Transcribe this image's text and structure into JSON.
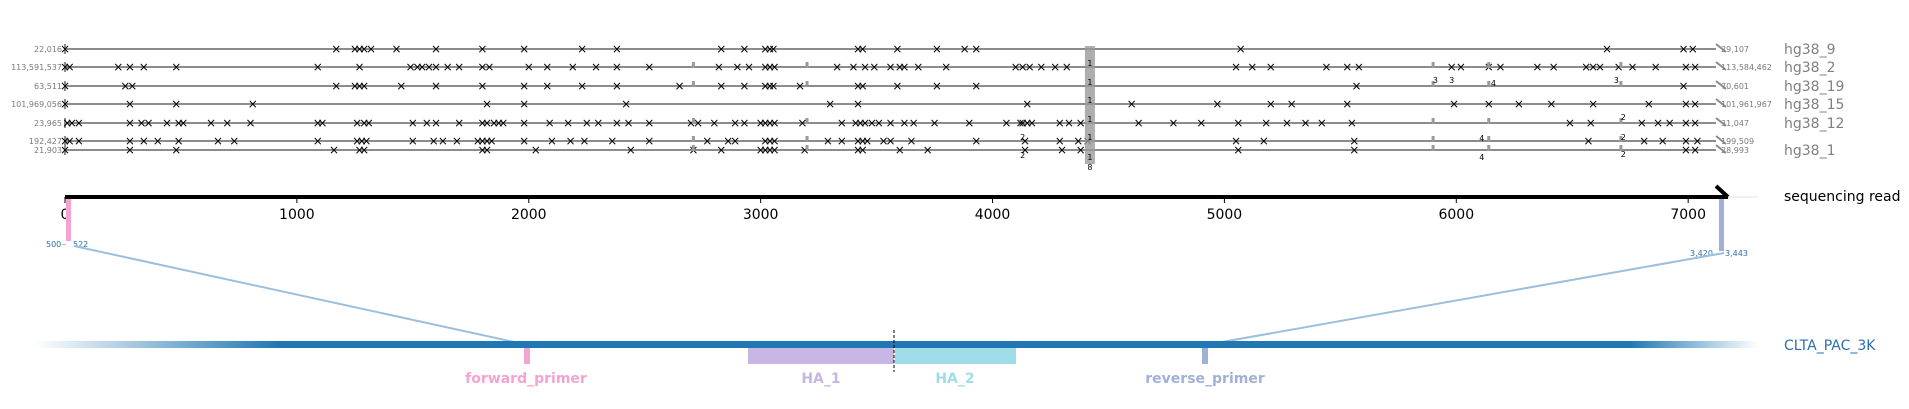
{
  "colors": {
    "alignment_line": "#8c8c8c",
    "read_axis": "#000000",
    "target_bar": "#1f77b4",
    "forward_primer": "#f5a3d0",
    "reverse_primer": "#9fb1d8",
    "ha1": "#c8b6e4",
    "ha2": "#9fdde8",
    "connector": "#9bbfdc",
    "mismatch_grey": "#b5b5b5"
  },
  "read": {
    "label": "sequencing read",
    "length": 7120,
    "ticks": [
      0,
      1000,
      2000,
      3000,
      4000,
      5000,
      6000,
      7000
    ],
    "left_block": {
      "start": 0,
      "end": 22,
      "color": "#f5a3d0"
    },
    "right_block": {
      "start": 7097,
      "end": 7120,
      "color": "#9fb1d8"
    }
  },
  "alignments": [
    {
      "label": "hg38_9",
      "left_coord": "22,016",
      "right_coord": "29,107",
      "show_label": true,
      "marks": [
        0,
        1170,
        1250,
        1270,
        1290,
        1320,
        1430,
        1600,
        1800,
        1980,
        2230,
        2380,
        2830,
        2930,
        3020,
        3040,
        3055,
        3420,
        3440,
        3590,
        3760,
        3880,
        3930,
        5070,
        6650,
        6980,
        7020
      ]
    },
    {
      "label": "hg38_2",
      "left_coord": "113,591,537",
      "right_coord": "113,584,462",
      "show_label": true,
      "marks": [
        0,
        20,
        230,
        280,
        340,
        480,
        1090,
        1270,
        1490,
        1520,
        1540,
        1570,
        1600,
        1650,
        1700,
        1800,
        1830,
        2000,
        2080,
        2190,
        2290,
        2380,
        2520,
        2820,
        2900,
        2950,
        3020,
        3040,
        3060,
        3330,
        3400,
        3450,
        3490,
        3560,
        3600,
        3620,
        3680,
        3800,
        4100,
        4130,
        4160,
        4210,
        4270,
        4320,
        5050,
        5120,
        5200,
        5440,
        5530,
        5580,
        5980,
        6020,
        6140,
        6190,
        6350,
        6420,
        6560,
        6590,
        6620,
        6700,
        6760,
        6860,
        6990,
        7030
      ]
    },
    {
      "label": "hg38_19",
      "left_coord": "63,511",
      "right_coord": "70,601",
      "show_label": true,
      "marks": [
        0,
        260,
        290,
        1170,
        1250,
        1270,
        1290,
        1450,
        1600,
        1800,
        1980,
        2080,
        2230,
        2380,
        2650,
        2830,
        2930,
        3020,
        3040,
        3055,
        3170,
        3420,
        3440,
        3590,
        3760,
        3930,
        5570,
        6980
      ]
    },
    {
      "label": "hg38_15",
      "left_coord": "101,969,056",
      "right_coord": "101,961,967",
      "show_label": true,
      "marks": [
        0,
        280,
        480,
        810,
        1820,
        1980,
        2420,
        3300,
        3420,
        4150,
        4600,
        4970,
        5200,
        5290,
        5530,
        5990,
        6140,
        6270,
        6410,
        6590,
        6830,
        6990,
        7030
      ]
    },
    {
      "label": "hg38_12",
      "left_coord": "23,965",
      "right_coord": "31,047",
      "show_label": true,
      "marks": [
        10,
        30,
        60,
        280,
        330,
        360,
        440,
        490,
        510,
        630,
        700,
        800,
        1090,
        1110,
        1260,
        1290,
        1310,
        1500,
        1560,
        1600,
        1700,
        1800,
        1820,
        1850,
        1870,
        1890,
        1980,
        2090,
        2170,
        2250,
        2300,
        2380,
        2430,
        2520,
        2700,
        2730,
        2800,
        2890,
        2930,
        3000,
        3020,
        3040,
        3060,
        3180,
        3350,
        3410,
        3430,
        3450,
        3480,
        3510,
        3560,
        3620,
        3660,
        3750,
        3900,
        4060,
        4120,
        4130,
        4150,
        4170,
        4290,
        4330,
        4380,
        4630,
        4780,
        4900,
        5060,
        5180,
        5270,
        5350,
        5420,
        5550,
        6490,
        6580,
        6800,
        6870,
        6920,
        6990,
        7030
      ]
    },
    {
      "label": "hg38_1",
      "left_coord": "192,427",
      "right_coord": "199,509",
      "show_label": false,
      "marks": [
        0,
        20,
        60,
        280,
        340,
        400,
        490,
        660,
        730,
        1090,
        1260,
        1280,
        1300,
        1500,
        1590,
        1630,
        1690,
        1780,
        1800,
        1820,
        1840,
        1980,
        2100,
        2180,
        2240,
        2360,
        2520,
        2770,
        2860,
        2890,
        3020,
        3040,
        3060,
        3290,
        3350,
        3420,
        3440,
        3460,
        3530,
        3560,
        3650,
        3930,
        4140,
        4290,
        4370,
        4410,
        5050,
        5170,
        5560,
        6570,
        6810,
        6890,
        6990,
        7040
      ]
    },
    {
      "label": "hg38_1",
      "left_coord": "21,903",
      "right_coord": "28,993",
      "show_label": true,
      "marks": [
        0,
        280,
        480,
        1160,
        1270,
        1290,
        1800,
        1820,
        2030,
        2440,
        2710,
        2830,
        3000,
        3020,
        3040,
        3060,
        3190,
        3420,
        3440,
        3600,
        3720,
        4140,
        4300,
        4380,
        5060,
        5560,
        6990,
        7030
      ]
    }
  ],
  "fwd_coords": {
    "start": "500",
    "end": "522"
  },
  "rev_coords": {
    "start": "3,420",
    "end": "3,443"
  },
  "target": {
    "label": "CLTA_PAC_3K",
    "features": [
      {
        "name": "forward_primer",
        "color": "#f5a3d0"
      },
      {
        "name": "HA_1",
        "color": "#c8b6e4"
      },
      {
        "name": "HA_2",
        "color": "#9fdde8"
      },
      {
        "name": "reverse_primer",
        "color": "#9fb1d8"
      }
    ]
  },
  "annotations": [
    "1",
    "2",
    "3",
    "4",
    "8"
  ]
}
